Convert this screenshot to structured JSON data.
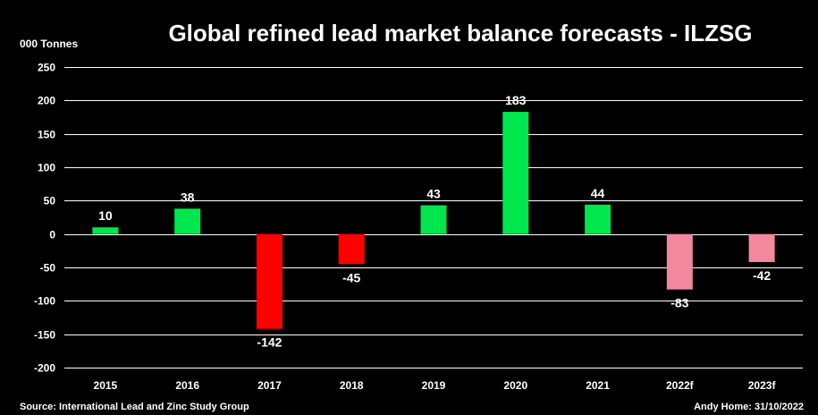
{
  "chart_data": {
    "type": "bar",
    "title": "Global refined lead market balance forecasts - ILZSG",
    "ylabel": "000 Tonnes",
    "xlabel": "",
    "categories": [
      "2015",
      "2016",
      "2017",
      "2018",
      "2019",
      "2020",
      "2021",
      "2022f",
      "2023f"
    ],
    "values": [
      10,
      38,
      -142,
      -45,
      43,
      183,
      44,
      -83,
      -42
    ],
    "data_labels": [
      "10",
      "38",
      "-142",
      "-45",
      "43",
      "183",
      "44",
      "-83",
      "-42"
    ],
    "bar_colors": [
      "#00e64d",
      "#00e64d",
      "#ff0000",
      "#ff0000",
      "#00e64d",
      "#00e64d",
      "#00e64d",
      "#f4889e",
      "#f4889e"
    ],
    "ylim": [
      -200,
      250
    ],
    "yticks": [
      "250",
      "200",
      "150",
      "100",
      "50",
      "0",
      "-50",
      "-100",
      "-150",
      "-200"
    ],
    "grid": true,
    "legend": "none"
  },
  "footer": {
    "source": "Source: International Lead and Zinc Study Group",
    "credit": "Andy Home: 31/10/2022"
  },
  "colors": {
    "background": "#000000",
    "grid": "#ffffff",
    "text": "#ffffff"
  }
}
